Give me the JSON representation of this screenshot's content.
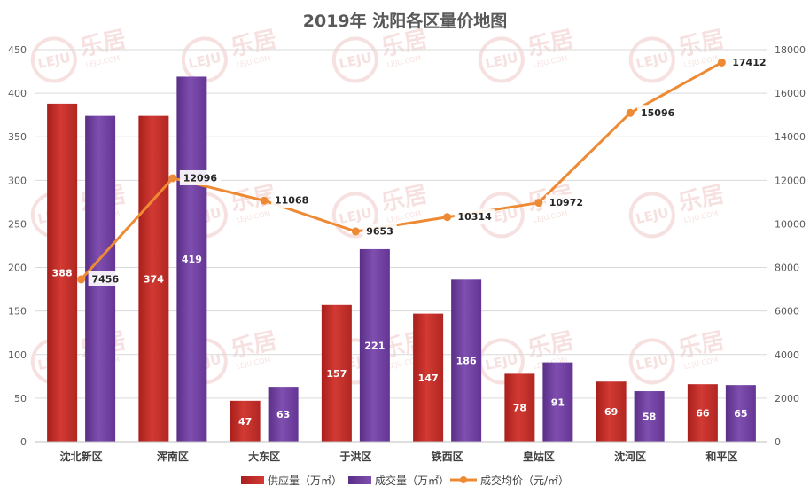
{
  "chart_data": {
    "type": "bar",
    "title": "2019年 沈阳各区量价地图",
    "categories": [
      "沈北新区",
      "浑南区",
      "大东区",
      "于洪区",
      "铁西区",
      "皇姑区",
      "沈河区",
      "和平区"
    ],
    "series": [
      {
        "name": "供应量（万㎡）",
        "kind": "bar",
        "axis": "left",
        "color": "#c4302b",
        "values": [
          388,
          374,
          47,
          157,
          147,
          78,
          69,
          66
        ]
      },
      {
        "name": "成交量（万㎡）",
        "kind": "bar",
        "axis": "left",
        "color": "#6f3f9e",
        "values": [
          374,
          419,
          63,
          221,
          186,
          91,
          58,
          65
        ]
      },
      {
        "name": "成交均价（元/㎡）",
        "kind": "line",
        "axis": "right",
        "color": "#ee8a34",
        "values": [
          7456,
          12096,
          11068,
          9653,
          10314,
          10972,
          15096,
          17412
        ]
      }
    ],
    "ylim_left": [
      0,
      450
    ],
    "yticks_left": [
      0,
      50,
      100,
      150,
      200,
      250,
      300,
      350,
      400,
      450
    ],
    "ylim_right": [
      0,
      18000
    ],
    "yticks_right": [
      0,
      2000,
      4000,
      6000,
      8000,
      10000,
      12000,
      14000,
      16000,
      18000
    ],
    "grid": true,
    "legend_position": "bottom"
  },
  "watermark": {
    "brand_text": "乐居",
    "logo_text": "LEJU",
    "url_text": "LEJU.COM"
  }
}
